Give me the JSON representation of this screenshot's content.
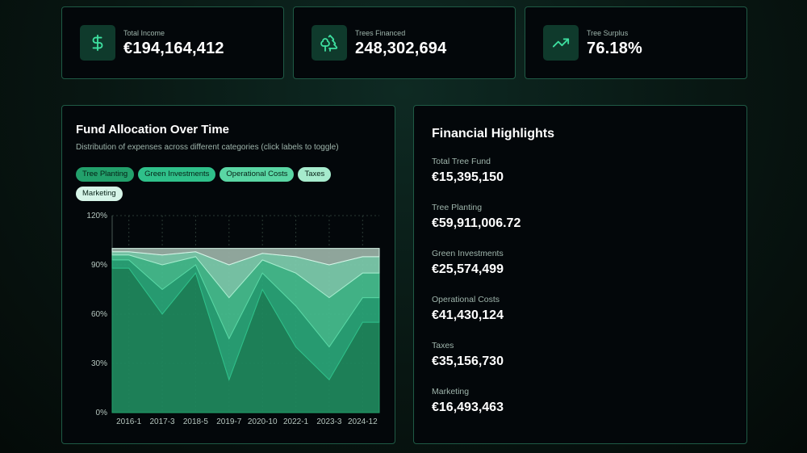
{
  "stats": [
    {
      "label": "Total Income",
      "value": "€194,164,412",
      "icon": "dollar-icon"
    },
    {
      "label": "Trees Financed",
      "value": "248,302,694",
      "icon": "trees-icon"
    },
    {
      "label": "Tree Surplus",
      "value": "76.18%",
      "icon": "trending-up-icon"
    }
  ],
  "allocation": {
    "title": "Fund Allocation Over Time",
    "subtitle": "Distribution of expenses across different categories (click labels to toggle)",
    "legend": [
      {
        "label": "Tree Planting",
        "color": "#22a06b"
      },
      {
        "label": "Green Investments",
        "color": "#2fc08a"
      },
      {
        "label": "Operational Costs",
        "color": "#5ad6a4"
      },
      {
        "label": "Taxes",
        "color": "#a6ebcd"
      },
      {
        "label": "Marketing",
        "color": "#d6f5e8"
      }
    ]
  },
  "highlights": {
    "title": "Financial Highlights",
    "items": [
      {
        "label": "Total Tree Fund",
        "value": "€15,395,150"
      },
      {
        "label": "Tree Planting",
        "value": "€59,911,006.72"
      },
      {
        "label": "Green Investments",
        "value": "€25,574,499"
      },
      {
        "label": "Operational Costs",
        "value": "€41,430,124"
      },
      {
        "label": "Taxes",
        "value": "€35,156,730"
      },
      {
        "label": "Marketing",
        "value": "€16,493,463"
      }
    ]
  },
  "chart_data": {
    "type": "area",
    "stacked": true,
    "normalized": true,
    "categories": [
      "2016-1",
      "2017-3",
      "2018-5",
      "2019-7",
      "2020-10",
      "2022-1",
      "2023-3",
      "2024-12"
    ],
    "ylim": [
      0,
      120
    ],
    "yticks": [
      "0%",
      "30%",
      "60%",
      "90%",
      "120%"
    ],
    "grid": true,
    "series": [
      {
        "name": "Tree Planting",
        "values": [
          88,
          60,
          85,
          20,
          75,
          40,
          20,
          55
        ]
      },
      {
        "name": "Green Investments",
        "values": [
          5,
          15,
          5,
          25,
          10,
          25,
          20,
          15
        ]
      },
      {
        "name": "Operational Costs",
        "values": [
          3,
          15,
          5,
          25,
          8,
          20,
          30,
          15
        ]
      },
      {
        "name": "Taxes",
        "values": [
          2,
          6,
          3,
          20,
          4,
          10,
          20,
          10
        ]
      },
      {
        "name": "Marketing",
        "values": [
          2,
          4,
          2,
          10,
          3,
          5,
          10,
          5
        ]
      }
    ]
  }
}
